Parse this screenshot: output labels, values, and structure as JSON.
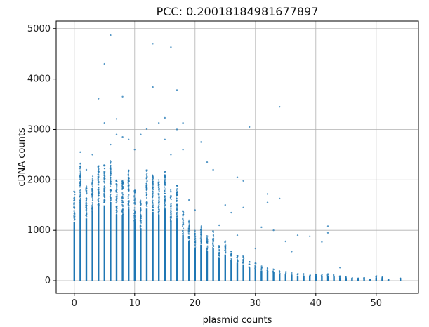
{
  "chart_data": {
    "type": "scatter",
    "title": "PCC: 0.20018184981677897",
    "xlabel": "plasmid counts",
    "ylabel": "cDNA counts",
    "xlim": [
      -3,
      57
    ],
    "ylim": [
      -250,
      5150
    ],
    "xticks": [
      0,
      10,
      20,
      30,
      40,
      50
    ],
    "yticks": [
      0,
      1000,
      2000,
      3000,
      4000,
      5000
    ],
    "grid": true,
    "color": "#1f77b4",
    "columns": [
      {
        "x": 0,
        "max": 1800
      },
      {
        "x": 1,
        "max": 2350
      },
      {
        "x": 2,
        "max": 1900
      },
      {
        "x": 3,
        "max": 2100
      },
      {
        "x": 4,
        "max": 2300
      },
      {
        "x": 5,
        "max": 2300
      },
      {
        "x": 6,
        "max": 2400
      },
      {
        "x": 7,
        "max": 2000
      },
      {
        "x": 8,
        "max": 2000
      },
      {
        "x": 9,
        "max": 2200
      },
      {
        "x": 10,
        "max": 1800
      },
      {
        "x": 11,
        "max": 1600
      },
      {
        "x": 12,
        "max": 2200
      },
      {
        "x": 13,
        "max": 2100
      },
      {
        "x": 14,
        "max": 2000
      },
      {
        "x": 15,
        "max": 2200
      },
      {
        "x": 16,
        "max": 1800
      },
      {
        "x": 17,
        "max": 1900
      },
      {
        "x": 18,
        "max": 1400
      },
      {
        "x": 19,
        "max": 1200
      },
      {
        "x": 20,
        "max": 1000
      },
      {
        "x": 21,
        "max": 1100
      },
      {
        "x": 22,
        "max": 900
      },
      {
        "x": 23,
        "max": 1000
      },
      {
        "x": 24,
        "max": 700
      },
      {
        "x": 25,
        "max": 800
      },
      {
        "x": 26,
        "max": 600
      },
      {
        "x": 27,
        "max": 550
      },
      {
        "x": 28,
        "max": 500
      },
      {
        "x": 29,
        "max": 400
      },
      {
        "x": 30,
        "max": 350
      },
      {
        "x": 31,
        "max": 300
      },
      {
        "x": 32,
        "max": 270
      },
      {
        "x": 33,
        "max": 250
      },
      {
        "x": 34,
        "max": 200
      },
      {
        "x": 35,
        "max": 190
      },
      {
        "x": 36,
        "max": 170
      },
      {
        "x": 37,
        "max": 150
      },
      {
        "x": 38,
        "max": 140
      },
      {
        "x": 39,
        "max": 130
      },
      {
        "x": 40,
        "max": 150
      },
      {
        "x": 41,
        "max": 130
      },
      {
        "x": 42,
        "max": 140
      },
      {
        "x": 43,
        "max": 120
      },
      {
        "x": 44,
        "max": 100
      },
      {
        "x": 45,
        "max": 80
      },
      {
        "x": 46,
        "max": 60
      },
      {
        "x": 47,
        "max": 50
      },
      {
        "x": 48,
        "max": 60
      },
      {
        "x": 49,
        "max": 30
      },
      {
        "x": 50,
        "max": 100
      },
      {
        "x": 51,
        "max": 80
      },
      {
        "x": 52,
        "max": 20
      },
      {
        "x": 54,
        "max": 50
      }
    ],
    "outliers": [
      [
        6,
        4870
      ],
      [
        13,
        4700
      ],
      [
        16,
        4630
      ],
      [
        5,
        4300
      ],
      [
        13,
        3840
      ],
      [
        17,
        3780
      ],
      [
        8,
        3650
      ],
      [
        4,
        3610
      ],
      [
        34,
        3450
      ],
      [
        15,
        3230
      ],
      [
        7,
        3210
      ],
      [
        14,
        3130
      ],
      [
        18,
        3130
      ],
      [
        12,
        3010
      ],
      [
        17,
        3000
      ],
      [
        29,
        3050
      ],
      [
        21,
        2750
      ],
      [
        16,
        2500
      ],
      [
        22,
        2350
      ],
      [
        23,
        2200
      ],
      [
        27,
        2050
      ],
      [
        28,
        1980
      ],
      [
        32,
        1720
      ],
      [
        34,
        1630
      ],
      [
        32,
        1550
      ],
      [
        25,
        1500
      ],
      [
        28,
        1450
      ],
      [
        26,
        1350
      ],
      [
        31,
        1060
      ],
      [
        33,
        1000
      ],
      [
        42,
        1080
      ],
      [
        37,
        900
      ],
      [
        39,
        880
      ],
      [
        35,
        780
      ],
      [
        41,
        770
      ],
      [
        42,
        950
      ],
      [
        36,
        580
      ],
      [
        30,
        640
      ],
      [
        44,
        260
      ],
      [
        27,
        900
      ],
      [
        24,
        1100
      ],
      [
        20,
        1400
      ],
      [
        19,
        1600
      ],
      [
        18,
        2600
      ],
      [
        15,
        2800
      ],
      [
        11,
        2900
      ],
      [
        9,
        2800
      ],
      [
        10,
        2600
      ],
      [
        3,
        2500
      ],
      [
        2,
        2200
      ],
      [
        1,
        2550
      ],
      [
        7,
        2900
      ],
      [
        8,
        2850
      ],
      [
        5,
        3130
      ],
      [
        6,
        2700
      ]
    ]
  }
}
